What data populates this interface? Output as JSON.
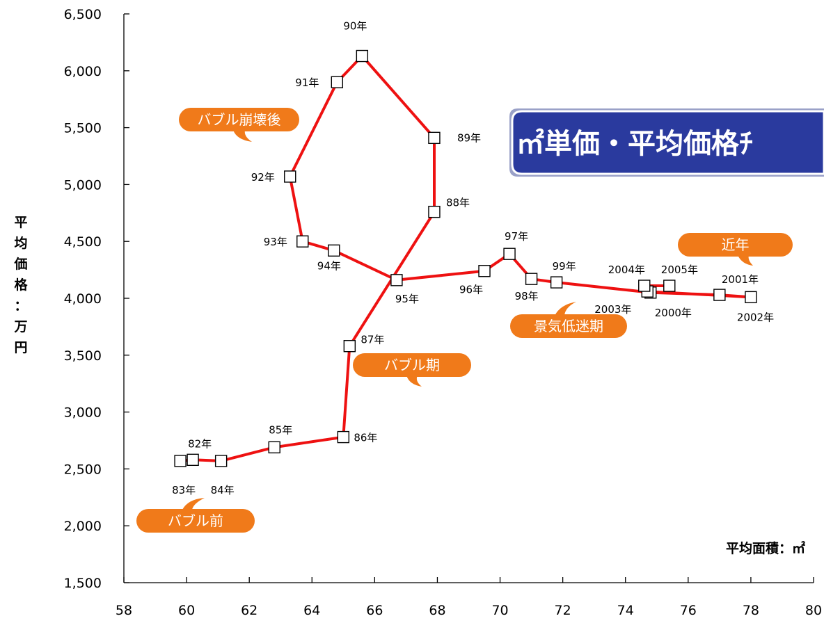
{
  "chart_data": {
    "type": "line",
    "title": "㎡単価・平均価格ﾁ",
    "xlabel": "平均面積：㎡",
    "ylabel": "平均価格：万円",
    "xlim": [
      58,
      80
    ],
    "ylim": [
      1500,
      6500
    ],
    "x_ticks": [
      "58",
      "60",
      "62",
      "64",
      "66",
      "68",
      "70",
      "72",
      "74",
      "76",
      "78",
      "80"
    ],
    "y_ticks": [
      "1,500",
      "2,000",
      "2,500",
      "3,000",
      "3,500",
      "4,000",
      "4,500",
      "5,000",
      "5,500",
      "6,000",
      "6,500"
    ],
    "line_color": "#ee1111",
    "callout_color": "#f07a1a",
    "banner_color": "#2a3a9e",
    "series": [
      {
        "points": [
          {
            "x": 59.8,
            "y": 2570
          },
          {
            "x": 60.2,
            "y": 2580,
            "label": "82年"
          },
          {
            "x": 61.1,
            "y": 2570
          },
          {
            "x": 62.8,
            "y": 2690,
            "label": "85年"
          },
          {
            "x": 65.0,
            "y": 2780,
            "label": "86年"
          },
          {
            "x": 65.2,
            "y": 3580,
            "label": "87年"
          },
          {
            "x": 67.9,
            "y": 4760,
            "label": "88年"
          },
          {
            "x": 67.9,
            "y": 5410,
            "label": "89年"
          },
          {
            "x": 65.6,
            "y": 6130,
            "label": "90年"
          },
          {
            "x": 64.8,
            "y": 5900,
            "label": "91年"
          },
          {
            "x": 63.3,
            "y": 5070,
            "label": "92年"
          },
          {
            "x": 63.7,
            "y": 4500,
            "label": "93年"
          },
          {
            "x": 64.7,
            "y": 4420,
            "label": "94年"
          },
          {
            "x": 66.7,
            "y": 4160,
            "label": "95年"
          },
          {
            "x": 69.5,
            "y": 4240,
            "label": "96年"
          },
          {
            "x": 70.3,
            "y": 4390,
            "label": "97年"
          },
          {
            "x": 71.0,
            "y": 4170,
            "label": "98年"
          },
          {
            "x": 71.8,
            "y": 4140,
            "label": "99年"
          },
          {
            "x": 74.8,
            "y": 4050,
            "label": "2000年"
          },
          {
            "x": 77.0,
            "y": 4030,
            "label": "2001年"
          },
          {
            "x": 78.0,
            "y": 4010,
            "label": "2002年"
          },
          {
            "x": 74.7,
            "y": 4060,
            "label": "2003年"
          },
          {
            "x": 74.6,
            "y": 4110,
            "label": "2004年"
          },
          {
            "x": 75.4,
            "y": 4110,
            "label": "2005年"
          }
        ]
      }
    ],
    "year_labels_extra": [
      "83年",
      "84年"
    ],
    "annotations": [
      "バブル前",
      "バブル期",
      "バブル崩壊後",
      "景気低迷期",
      "近年"
    ]
  }
}
